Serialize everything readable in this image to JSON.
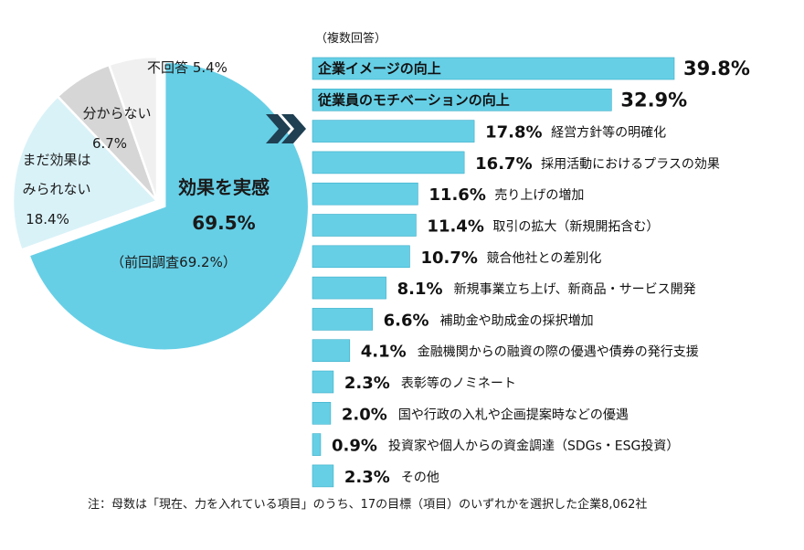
{
  "colors": {
    "accent": "#66cfe6",
    "pie_effect": "#66cfe6",
    "pie_not_yet": "#d9f2f8",
    "pie_unknown": "#d6d6d6",
    "pie_no_answer": "#f0f0f0",
    "arrow": "#1f3f52"
  },
  "header": {
    "multi_answer": "（複数回答）"
  },
  "footer": {
    "note": "注：母数は「現在、力を入れている項目」のうち、17の目標（項目）のいずれかを選択した企業8,062社"
  },
  "chart_data": [
    {
      "type": "pie",
      "slices": [
        {
          "label": "効果を実感",
          "value": 69.5,
          "display": "69.5%",
          "sublabel": "（前回調査69.2%）"
        },
        {
          "label": "まだ効果は|みられない",
          "value": 18.4,
          "display": "18.4%"
        },
        {
          "label": "分からない",
          "value": 6.7,
          "display": "6.7%"
        },
        {
          "label": "不回答",
          "value": 5.4,
          "display": "5.4%"
        }
      ]
    },
    {
      "type": "bar",
      "orientation": "horizontal",
      "xlim": [
        0,
        40
      ],
      "categories": [
        "企業イメージの向上",
        "従業員のモチベーションの向上",
        "経営方針等の明確化",
        "採用活動におけるプラスの効果",
        "売り上げの増加",
        "取引の拡大（新規開拓含む）",
        "競合他社との差別化",
        "新規事業立ち上げ、新商品・サービス開発",
        "補助金や助成金の採択増加",
        "金融機関からの融資の際の優遇や債券の発行支援",
        "表彰等のノミネート",
        "国や行政の入札や企画提案時などの優遇",
        "投資家や個人からの資金調達（SDGs・ESG投資）",
        "その他"
      ],
      "values": [
        39.8,
        32.9,
        17.8,
        16.7,
        11.6,
        11.4,
        10.7,
        8.1,
        6.6,
        4.1,
        2.3,
        2.0,
        0.9,
        2.3
      ],
      "value_labels": [
        "39.8%",
        "32.9%",
        "17.8%",
        "16.7%",
        "11.6%",
        "11.4%",
        "10.7%",
        "8.1%",
        "6.6%",
        "4.1%",
        "2.3%",
        "2.0%",
        "0.9%",
        "2.3%"
      ]
    }
  ]
}
